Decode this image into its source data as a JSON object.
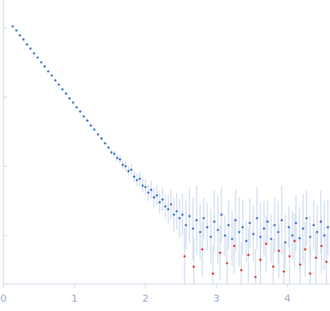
{
  "chart_data": {
    "type": "scatter",
    "xlim": [
      0,
      4.6
    ],
    "ylim": [
      0.3,
      4.4
    ],
    "xticks": [
      0,
      1,
      2,
      3,
      4
    ],
    "yticks": [
      1,
      2,
      3,
      4
    ],
    "tick_labels": "x",
    "marker": "circle",
    "series": [
      {
        "color": "#3a6bc4",
        "x": [
          0.13,
          0.18,
          0.23,
          0.28,
          0.33,
          0.38,
          0.43,
          0.48,
          0.53,
          0.58,
          0.63,
          0.68,
          0.73,
          0.78,
          0.83,
          0.88,
          0.93,
          0.98,
          1.03,
          1.08,
          1.13,
          1.18,
          1.23,
          1.28,
          1.33,
          1.38,
          1.43,
          1.48,
          1.52,
          1.56,
          1.6,
          1.64,
          1.68,
          1.72,
          1.76,
          1.8,
          1.84,
          1.88,
          1.92,
          1.96,
          2.0,
          2.04,
          2.08,
          2.12,
          2.16,
          2.2,
          2.24,
          2.28,
          2.32,
          2.36,
          2.4,
          2.44,
          2.48,
          2.52,
          2.57,
          2.62,
          2.67,
          2.72,
          2.77,
          2.82,
          2.87,
          2.92,
          2.97,
          3.02,
          3.07,
          3.12,
          3.17,
          3.22,
          3.27,
          3.32,
          3.37,
          3.42,
          3.47,
          3.52,
          3.57,
          3.62,
          3.67,
          3.72,
          3.77,
          3.82,
          3.87,
          3.92,
          3.97,
          4.02,
          4.07,
          4.12,
          4.17,
          4.22,
          4.27,
          4.32,
          4.37,
          4.42,
          4.47,
          4.52,
          4.57
        ],
        "values": [
          4.02,
          3.96,
          3.89,
          3.83,
          3.76,
          3.7,
          3.63,
          3.57,
          3.5,
          3.44,
          3.37,
          3.31,
          3.24,
          3.18,
          3.11,
          3.05,
          2.98,
          2.92,
          2.85,
          2.79,
          2.72,
          2.66,
          2.59,
          2.53,
          2.46,
          2.4,
          2.33,
          2.27,
          2.2,
          2.18,
          2.12,
          2.1,
          2.02,
          2.0,
          1.93,
          1.95,
          1.85,
          1.8,
          1.82,
          1.72,
          1.7,
          1.62,
          1.66,
          1.55,
          1.58,
          1.48,
          1.52,
          1.42,
          1.38,
          1.45,
          1.3,
          1.35,
          1.25,
          1.3,
          1.15,
          1.28,
          1.1,
          1.22,
          1.05,
          1.25,
          1.12,
          0.98,
          1.2,
          1.08,
          1.3,
          1.0,
          1.15,
          0.95,
          1.22,
          1.05,
          1.12,
          0.92,
          1.18,
          1.02,
          1.25,
          0.98,
          1.1,
          1.2,
          0.95,
          1.15,
          1.05,
          1.22,
          0.9,
          1.12,
          1.0,
          1.18,
          0.96,
          1.1,
          1.25,
          0.98,
          1.15,
          1.05,
          1.2,
          1.0,
          1.12
        ],
        "errors": [
          0.005,
          0.005,
          0.005,
          0.005,
          0.005,
          0.005,
          0.005,
          0.005,
          0.005,
          0.005,
          0.01,
          0.01,
          0.01,
          0.01,
          0.01,
          0.01,
          0.01,
          0.01,
          0.01,
          0.01,
          0.02,
          0.02,
          0.02,
          0.02,
          0.02,
          0.02,
          0.02,
          0.02,
          0.04,
          0.05,
          0.05,
          0.06,
          0.06,
          0.07,
          0.07,
          0.08,
          0.08,
          0.09,
          0.1,
          0.1,
          0.11,
          0.12,
          0.13,
          0.14,
          0.15,
          0.16,
          0.17,
          0.18,
          0.2,
          0.22,
          0.24,
          0.26,
          0.28,
          0.3,
          0.35,
          0.4,
          0.45,
          0.5,
          0.4,
          0.3,
          0.35,
          0.4,
          0.45,
          0.5,
          0.4,
          0.3,
          0.35,
          0.4,
          0.45,
          0.5,
          0.4,
          0.3,
          0.35,
          0.4,
          0.45,
          0.5,
          0.4,
          0.3,
          0.35,
          0.4,
          0.45,
          0.5,
          0.4,
          0.3,
          0.35,
          0.4,
          0.45,
          0.5,
          0.4,
          0.3,
          0.35,
          0.4,
          0.45,
          0.5,
          0.4
        ]
      },
      {
        "color": "#e0302a",
        "x": [
          2.55,
          2.68,
          2.8,
          2.95,
          3.05,
          3.15,
          3.25,
          3.35,
          3.45,
          3.55,
          3.62,
          3.7,
          3.8,
          3.88,
          3.95,
          4.03,
          4.1,
          4.18,
          4.25,
          4.32,
          4.4,
          4.48,
          4.55
        ],
        "values": [
          0.7,
          0.55,
          0.8,
          0.45,
          0.75,
          0.6,
          0.85,
          0.5,
          0.72,
          0.4,
          0.65,
          0.88,
          0.55,
          0.78,
          0.48,
          0.7,
          0.92,
          0.58,
          0.8,
          0.45,
          0.68,
          0.85,
          0.62
        ],
        "errors": [
          0.4,
          0.4,
          0.4,
          0.4,
          0.4,
          0.4,
          0.4,
          0.4,
          0.4,
          0.4,
          0.4,
          0.4,
          0.4,
          0.4,
          0.4,
          0.4,
          0.4,
          0.4,
          0.4,
          0.4,
          0.4,
          0.4,
          0.4
        ]
      }
    ]
  }
}
